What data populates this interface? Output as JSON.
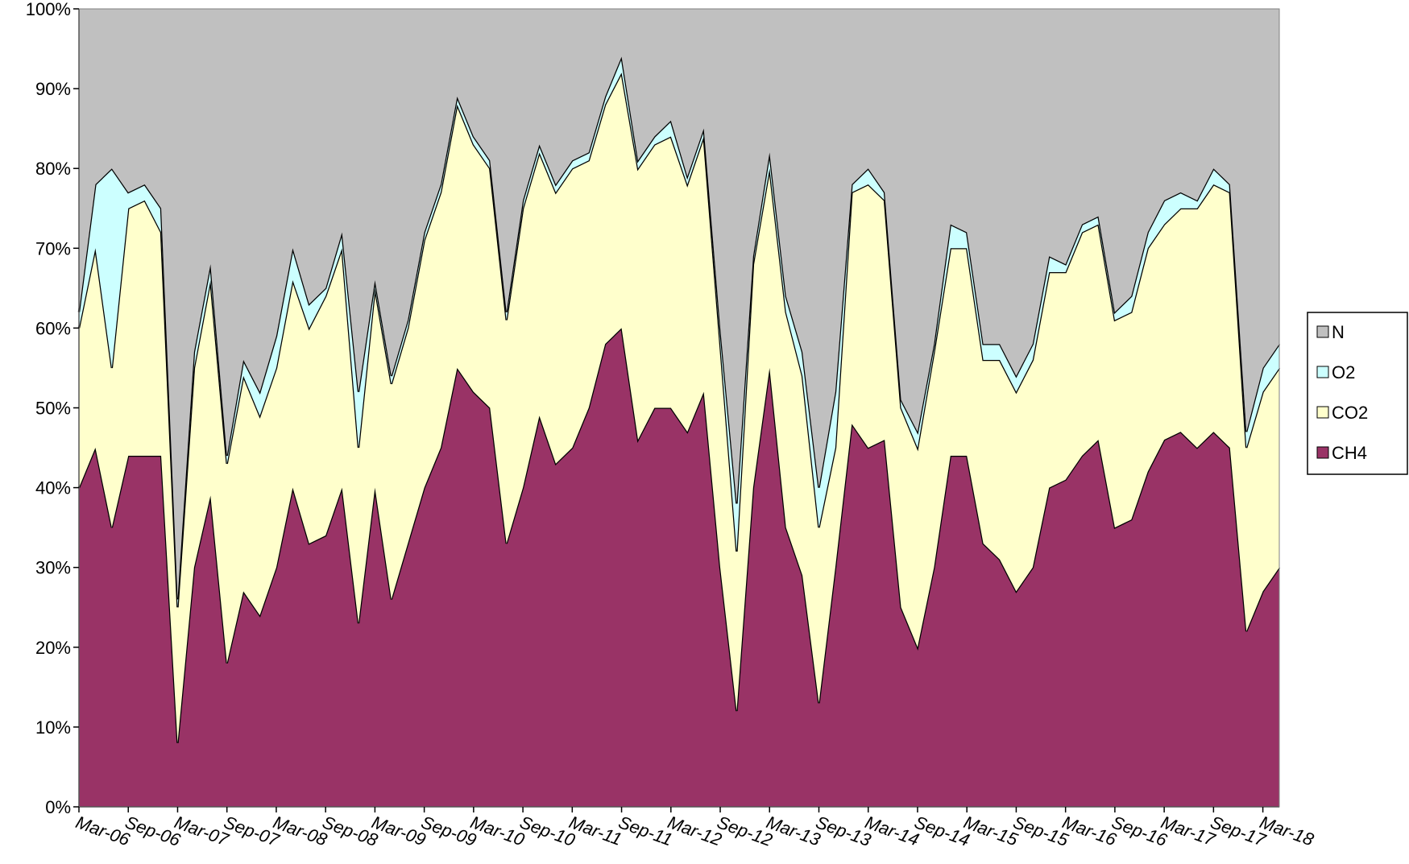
{
  "chart_data": {
    "type": "stacked_area_percent",
    "categories": [
      "Mar-06",
      null,
      null,
      "Sep-06",
      null,
      null,
      "Mar-07",
      null,
      null,
      "Sep-07",
      null,
      null,
      "Mar-08",
      null,
      null,
      "Sep-08",
      null,
      null,
      "Mar-09",
      null,
      null,
      "Sep-09",
      null,
      null,
      "Mar-10",
      null,
      null,
      "Sep-10",
      null,
      null,
      "Mar-11",
      null,
      null,
      "Sep-11",
      null,
      null,
      "Mar-12",
      null,
      null,
      "Sep-12",
      null,
      null,
      "Mar-13",
      null,
      null,
      "Sep-13",
      null,
      null,
      "Mar-14",
      null,
      null,
      "Sep-14",
      null,
      null,
      "Mar-15",
      null,
      null,
      "Sep-15",
      null,
      null,
      "Mar-16",
      null,
      null,
      "Sep-16",
      null,
      null,
      "Mar-17",
      null,
      null,
      "Sep-17",
      null,
      null,
      "Mar-18",
      null
    ],
    "series": [
      {
        "name": "CH4",
        "color": "#993366",
        "values": [
          40,
          45,
          35,
          44,
          44,
          44,
          8,
          30,
          39,
          18,
          27,
          24,
          30,
          40,
          33,
          34,
          40,
          23,
          40,
          26,
          33,
          40,
          45,
          55,
          52,
          50,
          33,
          40,
          49,
          43,
          45,
          50,
          58,
          60,
          46,
          50,
          50,
          47,
          52,
          30,
          12,
          40,
          55,
          35,
          29,
          13,
          30,
          48,
          45,
          46,
          25,
          20,
          30,
          44,
          44,
          33,
          31,
          27,
          30,
          40,
          41,
          44,
          46,
          35,
          36,
          42,
          46,
          47,
          45,
          47,
          45,
          22,
          27,
          30
        ]
      },
      {
        "name": "CO2",
        "color": "#ffffcc",
        "values": [
          20,
          25,
          20,
          31,
          32,
          28,
          17,
          25,
          27,
          25,
          27,
          25,
          25,
          26,
          27,
          30,
          30,
          22,
          25,
          27,
          27,
          31,
          32,
          33,
          31,
          30,
          28,
          35,
          33,
          34,
          35,
          31,
          30,
          32,
          34,
          33,
          34,
          31,
          32,
          28,
          20,
          28,
          25,
          27,
          25,
          22,
          15,
          29,
          33,
          30,
          25,
          25,
          27,
          26,
          26,
          23,
          25,
          25,
          26,
          27,
          26,
          28,
          27,
          26,
          26,
          28,
          27,
          28,
          30,
          31,
          32,
          23,
          25,
          25
        ]
      },
      {
        "name": "O2",
        "color": "#ccffff",
        "values": [
          2,
          8,
          25,
          2,
          2,
          3,
          1,
          2,
          2,
          1,
          2,
          3,
          4,
          4,
          3,
          1,
          2,
          7,
          1,
          1,
          1,
          1,
          1,
          1,
          1,
          1,
          1,
          1,
          1,
          1,
          1,
          1,
          1,
          2,
          1,
          1,
          2,
          1,
          1,
          2,
          6,
          1,
          2,
          2,
          3,
          5,
          7,
          1,
          2,
          1,
          1,
          2,
          1,
          3,
          2,
          2,
          2,
          2,
          2,
          2,
          1,
          1,
          1,
          1,
          2,
          2,
          3,
          2,
          1,
          2,
          1,
          2,
          3,
          3
        ]
      },
      {
        "name": "N",
        "color": "#c0c0c0",
        "values": [
          38,
          22,
          20,
          23,
          22,
          25,
          74,
          43,
          32,
          56,
          44,
          48,
          41,
          30,
          37,
          35,
          28,
          48,
          34,
          46,
          39,
          28,
          22,
          11,
          16,
          19,
          38,
          24,
          17,
          22,
          19,
          18,
          11,
          6,
          19,
          16,
          14,
          21,
          15,
          40,
          62,
          31,
          18,
          36,
          43,
          60,
          48,
          22,
          20,
          23,
          49,
          53,
          42,
          27,
          28,
          42,
          42,
          46,
          42,
          31,
          32,
          27,
          26,
          38,
          36,
          28,
          24,
          23,
          24,
          20,
          22,
          53,
          45,
          42
        ]
      }
    ],
    "ylim": [
      0,
      100
    ],
    "yticks": [
      {
        "value": 0,
        "label": "0%"
      },
      {
        "value": 10,
        "label": "10%"
      },
      {
        "value": 20,
        "label": "20%"
      },
      {
        "value": 30,
        "label": "30%"
      },
      {
        "value": 40,
        "label": "40%"
      },
      {
        "value": 50,
        "label": "50%"
      },
      {
        "value": 60,
        "label": "60%"
      },
      {
        "value": 70,
        "label": "70%"
      },
      {
        "value": 80,
        "label": "80%"
      },
      {
        "value": 90,
        "label": "90%"
      },
      {
        "value": 100,
        "label": "100%"
      }
    ],
    "grid": false,
    "legend": "right"
  }
}
